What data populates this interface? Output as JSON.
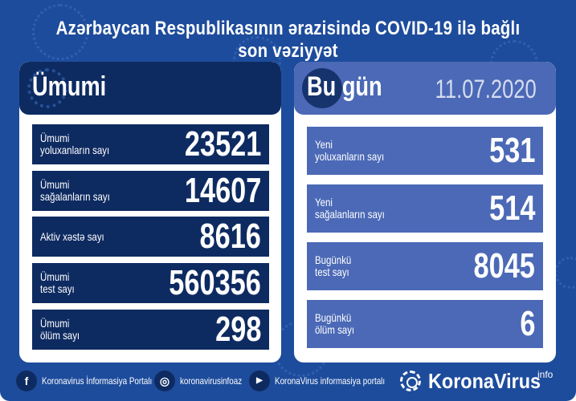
{
  "title": "Azərbaycan Respublikasının ərazisində COVID-19 ilə bağlı son vəziyyət",
  "colors": {
    "background": "#1e4c9c",
    "navy": "#0e2b61",
    "medium_blue": "#4b69b6"
  },
  "total": {
    "heading": "Ümumi",
    "rows": [
      {
        "label1": "Ümumi",
        "label2": "yoluxanların sayı",
        "value": "23521"
      },
      {
        "label1": "Ümumi",
        "label2": "sağalanların sayı",
        "value": "14607"
      },
      {
        "label1": "Aktiv xəstə sayı",
        "label2": "",
        "value": "8616"
      },
      {
        "label1": "Ümumi",
        "label2": "test sayı",
        "value": "560356"
      },
      {
        "label1": "Ümumi",
        "label2": "ölüm sayı",
        "value": "298"
      }
    ]
  },
  "today": {
    "heading": "Bu gün",
    "date": "11.07.2020",
    "rows": [
      {
        "label1": "Yeni",
        "label2": "yoluxanların sayı",
        "value": "531"
      },
      {
        "label1": "Yeni",
        "label2": "sağalanların sayı",
        "value": "514"
      },
      {
        "label1": "Bugünkü",
        "label2": "test sayı",
        "value": "8045"
      },
      {
        "label1": "Bugünkü",
        "label2": "ölüm sayı",
        "value": "6"
      }
    ]
  },
  "footer": {
    "facebook": "Koronavirus İnformasiya Portalı",
    "instagram": "koronavirusinfoaz",
    "youtube": "KoronaVirus informasiya portalı",
    "brand": "KoronaVirus",
    "brand_sup": "info"
  }
}
